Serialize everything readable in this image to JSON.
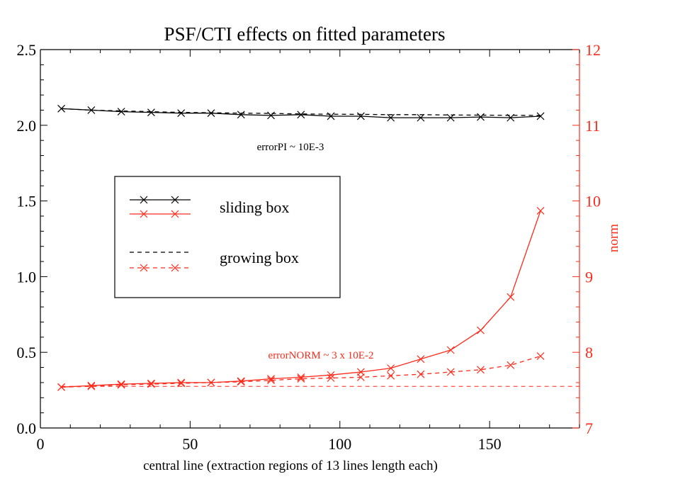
{
  "chart_data": {
    "type": "line",
    "title": "PSF/CTI effects on fitted parameters",
    "xlabel": "central line (extraction regions of 13 lines length each)",
    "ylabel_left": "",
    "ylabel_right": "norm",
    "xlim": [
      0,
      180
    ],
    "ylim_left": [
      0,
      2.5
    ],
    "ylim_right": [
      7,
      12
    ],
    "x_ticks": [
      "0",
      "50",
      "100",
      "150"
    ],
    "y_left_ticks": [
      "0.0",
      "0.5",
      "1.0",
      "1.5",
      "2.0",
      "2.5"
    ],
    "y_right_ticks": [
      "7",
      "8",
      "9",
      "10",
      "11",
      "12"
    ],
    "grid": false,
    "legend_position": "middle-left",
    "annotations": {
      "pi_error": "errorPI ~ 10E-3",
      "norm_error": "errorNORM ~ 3 x 10E-2"
    },
    "x": [
      7,
      17,
      27,
      37,
      47,
      57,
      67,
      77,
      87,
      97,
      107,
      117,
      127,
      137,
      147,
      157,
      167
    ],
    "series": [
      {
        "name": "sliding box",
        "axis": "left",
        "color": "#000000",
        "dash": "solid",
        "values": [
          2.11,
          2.1,
          2.09,
          2.085,
          2.08,
          2.08,
          2.07,
          2.065,
          2.07,
          2.06,
          2.06,
          2.05,
          2.05,
          2.05,
          2.055,
          2.05,
          2.06
        ]
      },
      {
        "name": "sliding box",
        "axis": "right",
        "color": "#ff2a1a",
        "dash": "solid",
        "values": [
          7.54,
          7.56,
          7.58,
          7.59,
          7.6,
          7.6,
          7.62,
          7.65,
          7.67,
          7.7,
          7.74,
          7.79,
          7.91,
          8.03,
          8.29,
          8.73,
          9.87
        ]
      },
      {
        "name": "growing box",
        "axis": "left",
        "color": "#000000",
        "dash": "dashed",
        "values": [
          2.11,
          2.1,
          2.095,
          2.09,
          2.085,
          2.083,
          2.08,
          2.078,
          2.075,
          2.073,
          2.072,
          2.07,
          2.07,
          2.068,
          2.067,
          2.066,
          2.065
        ]
      },
      {
        "name": "growing box",
        "axis": "right",
        "color": "#ff2a1a",
        "dash": "dashed",
        "values": [
          7.54,
          7.55,
          7.57,
          7.58,
          7.59,
          7.6,
          7.61,
          7.63,
          7.65,
          7.66,
          7.67,
          7.69,
          7.71,
          7.74,
          7.77,
          7.83,
          7.95
        ]
      }
    ],
    "reference_line": {
      "axis": "right",
      "value": 7.55,
      "color": "#ff2a1a",
      "dash": "dashed"
    },
    "legend": [
      {
        "label": "sliding box",
        "entries": [
          {
            "color": "#000000",
            "dash": "solid"
          },
          {
            "color": "#ff2a1a",
            "dash": "solid"
          }
        ]
      },
      {
        "label": "growing box",
        "entries": [
          {
            "color": "#000000",
            "dash": "dashed"
          },
          {
            "color": "#ff2a1a",
            "dash": "dashed"
          }
        ]
      }
    ]
  }
}
